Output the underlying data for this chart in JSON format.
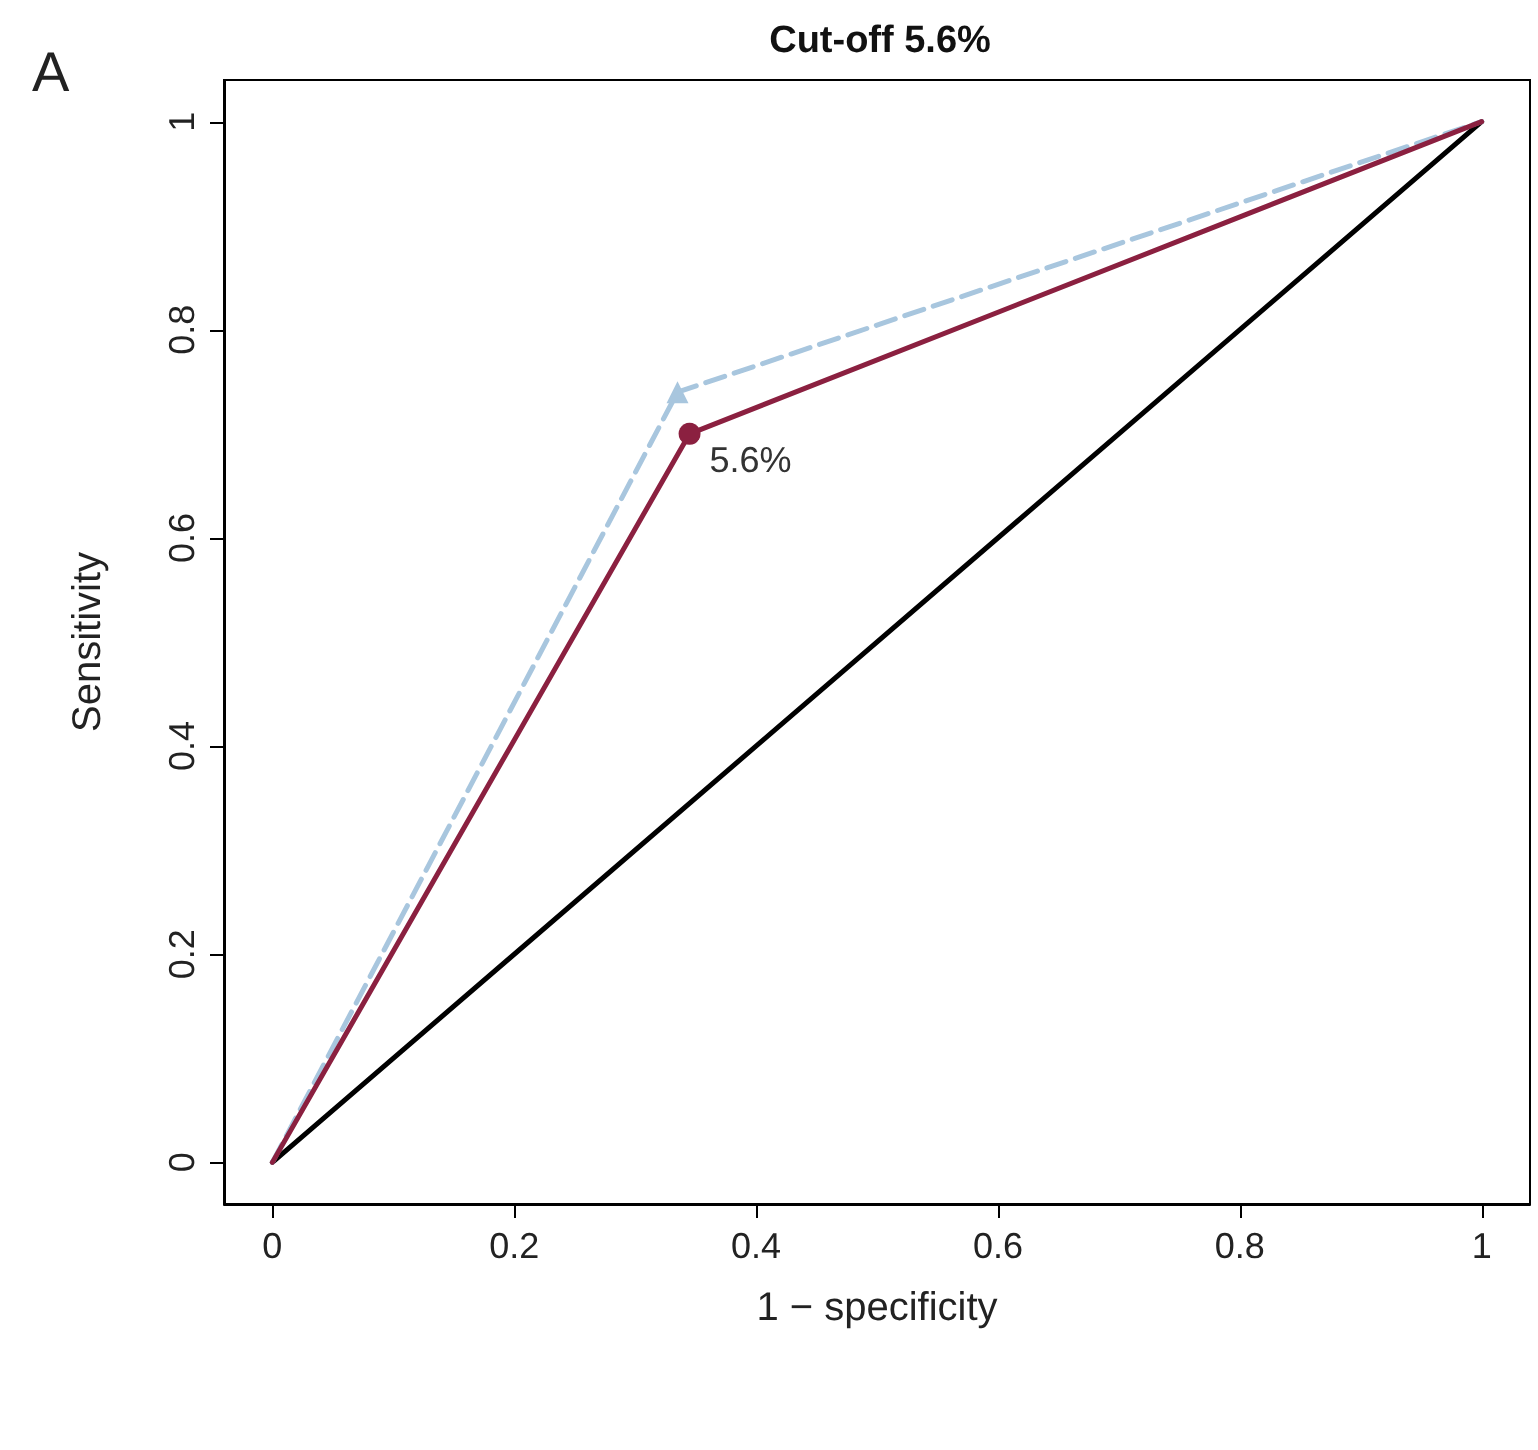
{
  "chart_data": {
    "type": "line",
    "title": "Cut-off 5.6%",
    "xlabel": "1 − specificity",
    "ylabel": "Sensitivity",
    "annotations": [
      "A",
      {
        "text": "5.6%",
        "x": 0.345,
        "y": 0.7
      }
    ],
    "xlim": [
      -0.04,
      1.04
    ],
    "ylim": [
      -0.04,
      1.04
    ],
    "xticks": [
      0,
      0.2,
      0.4,
      0.6,
      0.8,
      1
    ],
    "yticks": [
      0,
      0.2,
      0.4,
      0.6,
      0.8,
      1
    ],
    "grid": false,
    "marker": "none",
    "series": [
      {
        "color": "#000000",
        "x": [
          0,
          1
        ],
        "values": [
          0,
          1
        ],
        "line_style": "solid"
      },
      {
        "color": "#a8c6de",
        "x": [
          0,
          0.335,
          1
        ],
        "values": [
          0,
          0.74,
          1
        ],
        "line_style": "dashed"
      },
      {
        "color": "#8b2040",
        "x": [
          0,
          0.345,
          1
        ],
        "values": [
          0,
          0.7,
          1
        ],
        "line_style": "solid"
      },
      {
        "type": "scatter",
        "color": "#a8c6de",
        "x": [
          0.335
        ],
        "values": [
          0.74
        ],
        "marker": "triangle"
      },
      {
        "type": "scatter",
        "color": "#8b2040",
        "x": [
          0.345
        ],
        "values": [
          0.7
        ],
        "marker": "circle"
      }
    ]
  }
}
